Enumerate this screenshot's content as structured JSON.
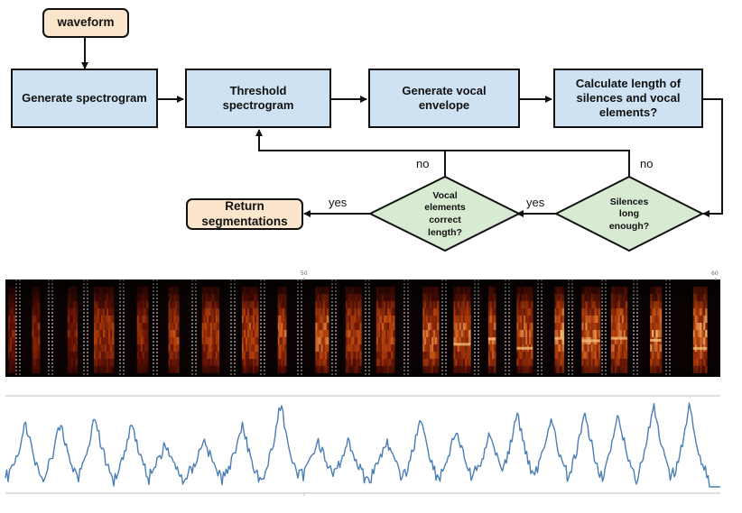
{
  "flowchart": {
    "waveform": "waveform",
    "generate_spectrogram": "Generate spectrogram",
    "threshold_spectrogram": "Threshold spectrogram",
    "generate_vocal_envelope": "Generate vocal envelope",
    "calculate_lengths": "Calculate length of silences and vocal elements?",
    "silences_long_enough": "Silences long enough?",
    "vocal_elements_correct_length": "Vocal elements correct length?",
    "return_segmentations": "Return segmentations",
    "edge_labels": {
      "no_left": "no",
      "no_right": "no",
      "yes_left": "yes",
      "yes_right": "yes"
    }
  },
  "spectrogram": {
    "tick_labels": [
      "50",
      "60"
    ],
    "colormap": [
      "#000000",
      "#5a0e05",
      "#b8440c",
      "#ffd28a"
    ]
  },
  "envelope": {
    "line_color": "#4a7eb5",
    "axis_color": "#bdbdbd"
  }
}
